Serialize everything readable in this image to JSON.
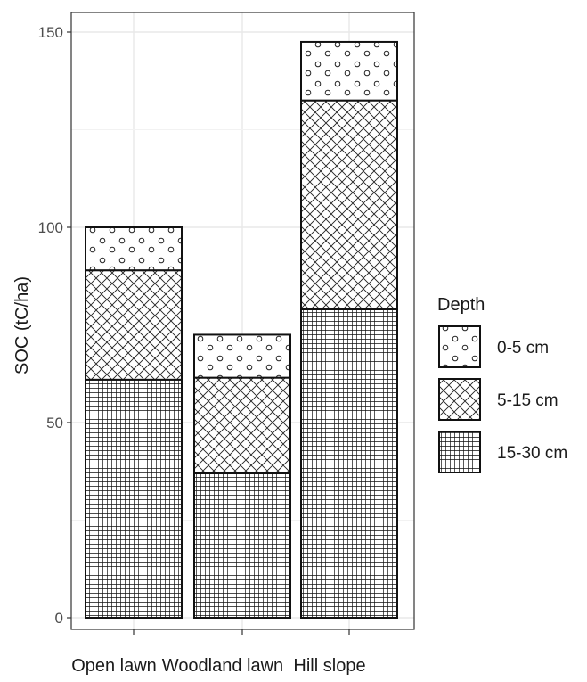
{
  "chart_data": {
    "type": "bar",
    "stacked": true,
    "title": "",
    "xlabel": "",
    "ylabel": "SOC (tC/ha)",
    "ylim": [
      0,
      155
    ],
    "yticks": [
      0,
      50,
      100,
      150
    ],
    "grid": true,
    "categories": [
      "Open lawn",
      "Woodland lawn",
      "Hill slope"
    ],
    "series": [
      {
        "name": "15-30 cm",
        "pattern": "grid-dense",
        "values": [
          61,
          37,
          79
        ]
      },
      {
        "name": "5-15 cm",
        "pattern": "crosshatch",
        "values": [
          28,
          24.5,
          53.5
        ]
      },
      {
        "name": "0-5 cm",
        "pattern": "circles",
        "values": [
          11,
          11,
          15
        ]
      }
    ],
    "legend": {
      "title": "Depth",
      "position": "right",
      "entries": [
        "0-5 cm",
        "5-15 cm",
        "15-30 cm"
      ]
    },
    "colors": {
      "panel_border": "#333333",
      "grid": "#e8e8e8",
      "bar_stroke": "#111111",
      "fill": "#ffffff"
    }
  }
}
